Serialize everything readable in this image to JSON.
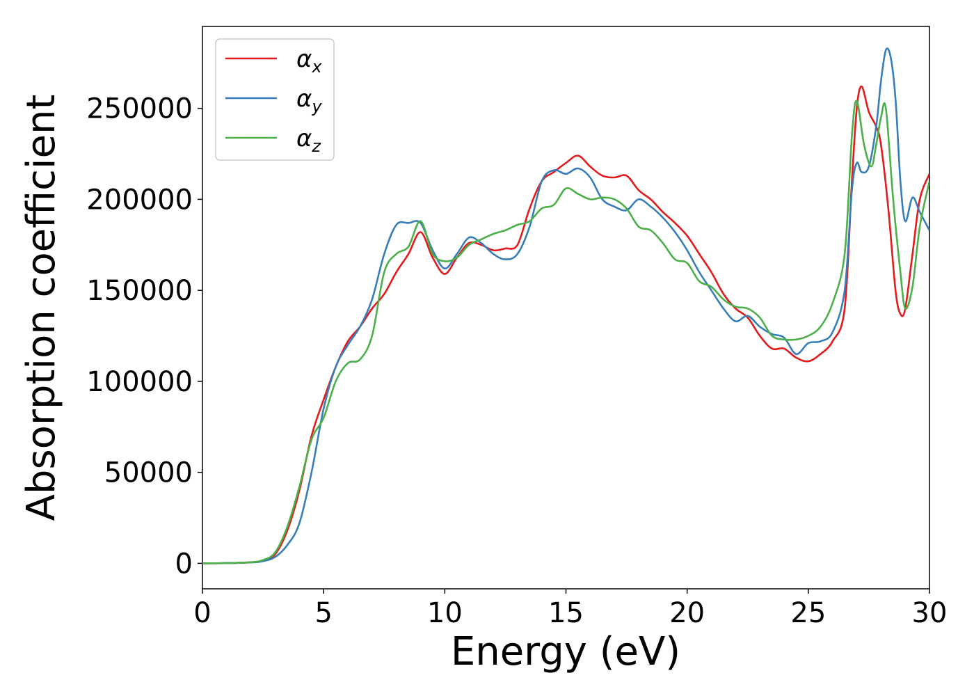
{
  "chart_data": {
    "type": "line",
    "title": "",
    "xlabel": "Energy (eV)",
    "ylabel": "Absorption coefficient",
    "xlim": [
      0,
      30
    ],
    "ylim": [
      -14000,
      295000
    ],
    "xticks": [
      0,
      5,
      10,
      15,
      20,
      25,
      30
    ],
    "xtick_labels": [
      "0",
      "5",
      "10",
      "15",
      "20",
      "25",
      "30"
    ],
    "yticks": [
      0,
      50000,
      100000,
      150000,
      200000,
      250000
    ],
    "ytick_labels": [
      "0",
      "50000",
      "100000",
      "150000",
      "200000",
      "250000"
    ],
    "grid": false,
    "legend_position": "top-left",
    "series": [
      {
        "name": "α",
        "subscript": "x",
        "color": "#e41a1c",
        "x": [
          0,
          1,
          2,
          2.5,
          3,
          3.5,
          4,
          4.5,
          5,
          5.5,
          6,
          6.5,
          7,
          7.5,
          8,
          8.5,
          9,
          9.5,
          10,
          10.5,
          11,
          11.5,
          12,
          12.5,
          13,
          13.5,
          14,
          14.5,
          15,
          15.5,
          16,
          16.5,
          17,
          17.5,
          18,
          18.5,
          19,
          19.5,
          20,
          20.5,
          21,
          21.5,
          22,
          22.5,
          23,
          23.5,
          24,
          24.5,
          25,
          25.5,
          26,
          26.5,
          26.8,
          27,
          27.2,
          27.5,
          27.8,
          28,
          28.3,
          28.6,
          28.8,
          29,
          29.3,
          29.6,
          30
        ],
        "y": [
          0,
          100,
          600,
          1500,
          5000,
          18000,
          40000,
          70000,
          90000,
          108000,
          122000,
          130000,
          140000,
          148000,
          160000,
          170000,
          182000,
          168000,
          159000,
          168000,
          176000,
          175000,
          172000,
          173000,
          175000,
          195000,
          210000,
          215000,
          220000,
          224000,
          218000,
          213000,
          212000,
          213000,
          205000,
          200000,
          193000,
          187000,
          180000,
          170000,
          160000,
          148000,
          140000,
          135000,
          125000,
          118000,
          118000,
          113000,
          111000,
          115000,
          122000,
          140000,
          210000,
          250000,
          262000,
          248000,
          240000,
          230000,
          195000,
          150000,
          137000,
          140000,
          170000,
          200000,
          214000
        ]
      },
      {
        "name": "α",
        "subscript": "y",
        "color": "#377eb8",
        "x": [
          0,
          1,
          2,
          2.5,
          3,
          3.5,
          4,
          4.5,
          5,
          5.5,
          6,
          6.5,
          7,
          7.5,
          8,
          8.5,
          9,
          9.5,
          10,
          10.5,
          11,
          11.5,
          12,
          12.5,
          13,
          13.5,
          14,
          14.5,
          15,
          15.5,
          16,
          16.5,
          17,
          17.5,
          18,
          18.5,
          19,
          19.5,
          20,
          20.5,
          21,
          21.5,
          22,
          22.5,
          23,
          23.5,
          24,
          24.5,
          25,
          25.5,
          26,
          26.5,
          26.8,
          27,
          27.2,
          27.5,
          27.8,
          28,
          28.2,
          28.4,
          28.6,
          28.8,
          29,
          29.3,
          29.6,
          30
        ],
        "y": [
          0,
          100,
          500,
          1200,
          3500,
          10000,
          22000,
          50000,
          85000,
          108000,
          120000,
          130000,
          145000,
          170000,
          186000,
          187000,
          187000,
          172000,
          162000,
          170000,
          179000,
          176000,
          170000,
          167000,
          170000,
          185000,
          210000,
          216000,
          214000,
          217000,
          212000,
          200000,
          196000,
          194000,
          200000,
          196000,
          190000,
          182000,
          172000,
          160000,
          150000,
          140000,
          133000,
          136000,
          130000,
          126000,
          124000,
          115000,
          121000,
          122000,
          127000,
          150000,
          205000,
          220000,
          215000,
          218000,
          240000,
          265000,
          282000,
          278000,
          255000,
          210000,
          188000,
          201000,
          193000,
          183000
        ]
      },
      {
        "name": "α",
        "subscript": "z",
        "color": "#4daf4a",
        "x": [
          0,
          1,
          2,
          2.5,
          3,
          3.5,
          4,
          4.5,
          5,
          5.5,
          6,
          6.5,
          7,
          7.5,
          8,
          8.5,
          9,
          9.5,
          10,
          10.5,
          11,
          11.5,
          12,
          12.5,
          13,
          13.5,
          14,
          14.5,
          15,
          15.5,
          16,
          16.5,
          17,
          17.5,
          18,
          18.5,
          19,
          19.5,
          20,
          20.5,
          21,
          21.5,
          22,
          22.5,
          23,
          23.5,
          24,
          24.5,
          25,
          25.5,
          26,
          26.5,
          26.8,
          27,
          27.3,
          27.6,
          27.8,
          28,
          28.2,
          28.5,
          28.8,
          29,
          29.3,
          29.6,
          30
        ],
        "y": [
          0,
          100,
          600,
          1800,
          6000,
          20000,
          42000,
          68000,
          80000,
          100000,
          110000,
          112000,
          125000,
          160000,
          170000,
          174000,
          188000,
          170000,
          166000,
          168000,
          175000,
          178000,
          181000,
          183000,
          186000,
          188000,
          195000,
          197000,
          206000,
          203000,
          200000,
          201000,
          200000,
          195000,
          185000,
          183000,
          176000,
          167000,
          165000,
          155000,
          152000,
          145000,
          141000,
          140000,
          135000,
          125000,
          123000,
          123000,
          125000,
          130000,
          143000,
          170000,
          235000,
          254000,
          230000,
          218000,
          230000,
          245000,
          250000,
          200000,
          160000,
          140000,
          152000,
          185000,
          210000
        ]
      }
    ]
  }
}
